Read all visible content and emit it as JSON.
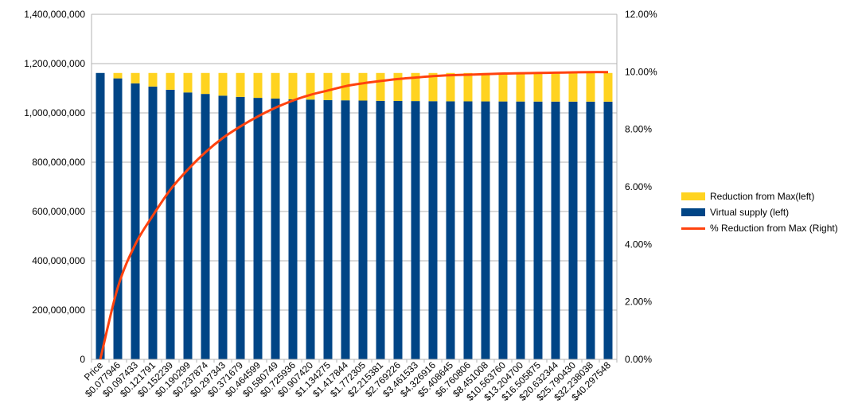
{
  "chart_data": {
    "type": "bar",
    "stacked": true,
    "categories": [
      "Price",
      "$0.077946",
      "$0.097433",
      "$0.121791",
      "$0.152239",
      "$0.190299",
      "$0.237874",
      "$0.297343",
      "$0.371679",
      "$0.464599",
      "$0.580749",
      "$0.725936",
      "$0.907420",
      "$1.134275",
      "$1.417844",
      "$1.772305",
      "$2.215381",
      "$2.769226",
      "$3.461533",
      "$4.326916",
      "$5.408645",
      "$6.760806",
      "$8.451008",
      "$10.563760",
      "$13.204700",
      "$16.505875",
      "$20.632344",
      "$25.790430",
      "$32.238038",
      "$40.297548"
    ],
    "series": [
      {
        "name": "Virtual supply (left)",
        "axis": "left",
        "color": "#004586",
        "values": [
          1162000000,
          1140000000,
          1120000000,
          1107000000,
          1094000000,
          1083000000,
          1077000000,
          1070000000,
          1065000000,
          1061000000,
          1058000000,
          1055000000,
          1054000000,
          1052000000,
          1051000000,
          1050000000,
          1049000000,
          1048500000,
          1048000000,
          1047500000,
          1047000000,
          1046800000,
          1046600000,
          1046400000,
          1046200000,
          1046000000,
          1045900000,
          1045800000,
          1045700000,
          1045600000
        ]
      },
      {
        "name": "Reduction from Max(left)",
        "axis": "left",
        "color": "#ffd320",
        "values": [
          0,
          22000000,
          42000000,
          55000000,
          68000000,
          79000000,
          85000000,
          92000000,
          97000000,
          101000000,
          104000000,
          107000000,
          108000000,
          110000000,
          111000000,
          112000000,
          113000000,
          113500000,
          114000000,
          114500000,
          115000000,
          115200000,
          115400000,
          115600000,
          115800000,
          116000000,
          116100000,
          116200000,
          116300000,
          116400000
        ]
      },
      {
        "name": "% Reduction from Max (Right)",
        "axis": "right",
        "type": "line",
        "color": "#ff420e",
        "values": [
          0,
          2.5,
          4.0,
          5.0,
          5.9,
          6.6,
          7.2,
          7.7,
          8.1,
          8.45,
          8.75,
          9.0,
          9.2,
          9.35,
          9.5,
          9.6,
          9.68,
          9.75,
          9.8,
          9.85,
          9.88,
          9.9,
          9.92,
          9.94,
          9.95,
          9.96,
          9.97,
          9.98,
          9.99,
          9.99
        ]
      }
    ],
    "ylim_left": [
      0,
      1400000000
    ],
    "ylim_right": [
      0,
      12
    ],
    "left_ticks": [
      "0",
      "200,000,000",
      "400,000,000",
      "600,000,000",
      "800,000,000",
      "1,000,000,000",
      "1,200,000,000",
      "1,400,000,000"
    ],
    "right_ticks": [
      "0.00%",
      "2.00%",
      "4.00%",
      "6.00%",
      "8.00%",
      "10.00%",
      "12.00%"
    ],
    "grid": "horizontal",
    "legend_position": "right"
  }
}
